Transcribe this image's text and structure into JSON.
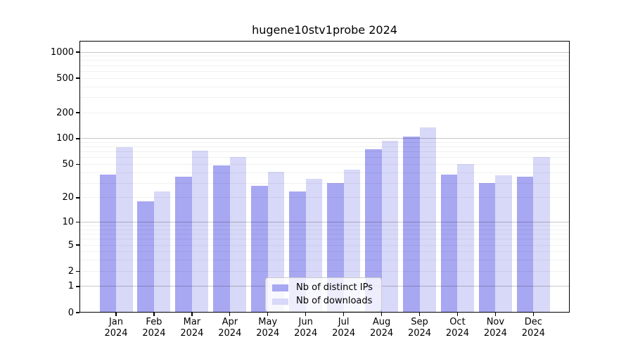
{
  "chart_data": {
    "type": "bar",
    "title": "hugene10stv1probe 2024",
    "year_label": "2024",
    "months": [
      "Jan",
      "Feb",
      "Mar",
      "Apr",
      "May",
      "Jun",
      "Jul",
      "Aug",
      "Sep",
      "Oct",
      "Nov",
      "Dec"
    ],
    "categories": [
      "Jan 2024",
      "Feb 2024",
      "Mar 2024",
      "Apr 2024",
      "May 2024",
      "Jun 2024",
      "Jul 2024",
      "Aug 2024",
      "Sep 2024",
      "Oct 2024",
      "Nov 2024",
      "Dec 2024"
    ],
    "series": [
      {
        "name": "Nb of distinct IPs",
        "color": "#a7a7f2",
        "values": [
          38,
          18,
          36,
          49,
          28,
          24,
          30,
          75,
          106,
          38,
          30,
          36
        ]
      },
      {
        "name": "Nb of downloads",
        "color": "#d8d8f8",
        "values": [
          80,
          24,
          72,
          61,
          41,
          34,
          43,
          95,
          135,
          50,
          37,
          61
        ]
      }
    ],
    "yscale": "log10(value+1)",
    "yticks": [
      1000,
      500,
      200,
      100,
      50,
      20,
      10,
      5,
      2,
      1,
      0
    ],
    "ylim": [
      0,
      1350
    ],
    "xlabel": "",
    "ylabel": "",
    "grid": "horizontal; faint minor lines at 2-9 per decade; darker major lines at 1, 10, 100, 1000",
    "legend_position": "inside bottom-center"
  },
  "colors": {
    "background": "#ffffff",
    "axis": "#000000",
    "major_grid": "#c7c7c7",
    "minor_grid": "#f0f0f0",
    "legend_border": "#cccccc"
  }
}
